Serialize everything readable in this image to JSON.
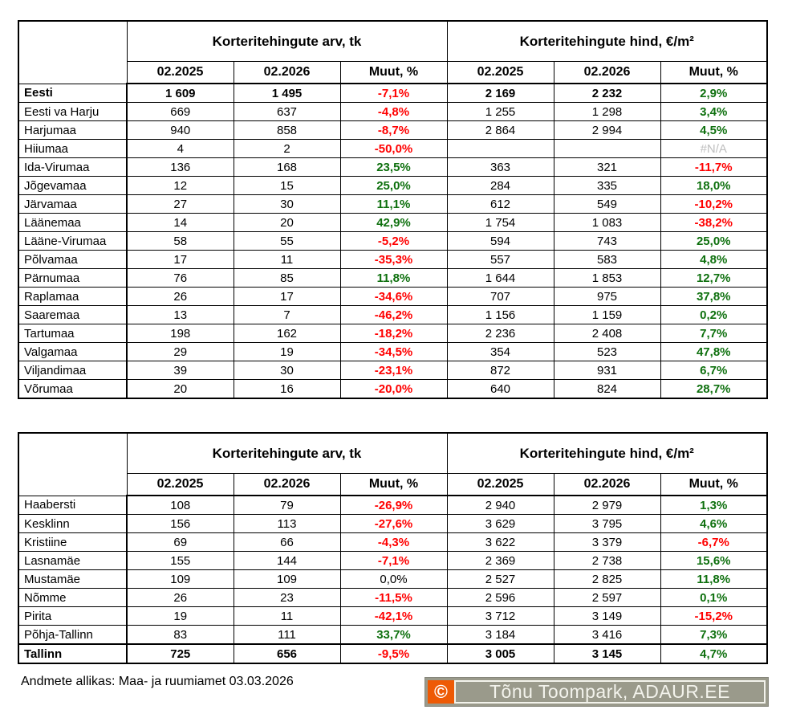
{
  "palette": {
    "negative": "#ff0000",
    "positive": "#0e700e",
    "neutral": "#000000",
    "na": "#bfbfbf",
    "border": "#000000",
    "watermark_bg": "#9a9a8b",
    "watermark_orange": "#ee5a05",
    "watermark_text": "#f3f3ec"
  },
  "chart_data": [
    {
      "type": "table",
      "name": "counties",
      "section_titles": [
        "Korteritehingute arv, tk",
        "Korteritehingute hind, €/m²"
      ],
      "period_headers": [
        "02.2025",
        "02.2026",
        "Muut, %"
      ],
      "rows": [
        {
          "label": "Eesti",
          "bold": true,
          "values": [
            "1 609",
            "1 495",
            "-7,1%",
            "2 169",
            "2 232",
            "2,9%"
          ],
          "tones": [
            null,
            null,
            "negative",
            null,
            null,
            "positive"
          ]
        },
        {
          "label": "Eesti va Harju",
          "values": [
            "669",
            "637",
            "-4,8%",
            "1 255",
            "1 298",
            "3,4%"
          ],
          "tones": [
            null,
            null,
            "negative",
            null,
            null,
            "positive"
          ]
        },
        {
          "label": "Harjumaa",
          "values": [
            "940",
            "858",
            "-8,7%",
            "2 864",
            "2 994",
            "4,5%"
          ],
          "tones": [
            null,
            null,
            "negative",
            null,
            null,
            "positive"
          ]
        },
        {
          "label": "Hiiumaa",
          "values": [
            "4",
            "2",
            "-50,0%",
            "",
            "",
            "#N/A"
          ],
          "tones": [
            null,
            null,
            "negative",
            null,
            null,
            "na"
          ]
        },
        {
          "label": "Ida-Virumaa",
          "values": [
            "136",
            "168",
            "23,5%",
            "363",
            "321",
            "-11,7%"
          ],
          "tones": [
            null,
            null,
            "positive",
            null,
            null,
            "negative"
          ]
        },
        {
          "label": "Jõgevamaa",
          "values": [
            "12",
            "15",
            "25,0%",
            "284",
            "335",
            "18,0%"
          ],
          "tones": [
            null,
            null,
            "positive",
            null,
            null,
            "positive"
          ]
        },
        {
          "label": "Järvamaa",
          "values": [
            "27",
            "30",
            "11,1%",
            "612",
            "549",
            "-10,2%"
          ],
          "tones": [
            null,
            null,
            "positive",
            null,
            null,
            "negative"
          ]
        },
        {
          "label": "Läänemaa",
          "values": [
            "14",
            "20",
            "42,9%",
            "1 754",
            "1 083",
            "-38,2%"
          ],
          "tones": [
            null,
            null,
            "positive",
            null,
            null,
            "negative"
          ]
        },
        {
          "label": "Lääne-Virumaa",
          "values": [
            "58",
            "55",
            "-5,2%",
            "594",
            "743",
            "25,0%"
          ],
          "tones": [
            null,
            null,
            "negative",
            null,
            null,
            "positive"
          ]
        },
        {
          "label": "Põlvamaa",
          "values": [
            "17",
            "11",
            "-35,3%",
            "557",
            "583",
            "4,8%"
          ],
          "tones": [
            null,
            null,
            "negative",
            null,
            null,
            "positive"
          ]
        },
        {
          "label": "Pärnumaa",
          "values": [
            "76",
            "85",
            "11,8%",
            "1 644",
            "1 853",
            "12,7%"
          ],
          "tones": [
            null,
            null,
            "positive",
            null,
            null,
            "positive"
          ]
        },
        {
          "label": "Raplamaa",
          "values": [
            "26",
            "17",
            "-34,6%",
            "707",
            "975",
            "37,8%"
          ],
          "tones": [
            null,
            null,
            "negative",
            null,
            null,
            "positive"
          ]
        },
        {
          "label": "Saaremaa",
          "values": [
            "13",
            "7",
            "-46,2%",
            "1 156",
            "1 159",
            "0,2%"
          ],
          "tones": [
            null,
            null,
            "negative",
            null,
            null,
            "positive"
          ]
        },
        {
          "label": "Tartumaa",
          "values": [
            "198",
            "162",
            "-18,2%",
            "2 236",
            "2 408",
            "7,7%"
          ],
          "tones": [
            null,
            null,
            "negative",
            null,
            null,
            "positive"
          ]
        },
        {
          "label": "Valgamaa",
          "values": [
            "29",
            "19",
            "-34,5%",
            "354",
            "523",
            "47,8%"
          ],
          "tones": [
            null,
            null,
            "negative",
            null,
            null,
            "positive"
          ]
        },
        {
          "label": "Viljandimaa",
          "values": [
            "39",
            "30",
            "-23,1%",
            "872",
            "931",
            "6,7%"
          ],
          "tones": [
            null,
            null,
            "negative",
            null,
            null,
            "positive"
          ]
        },
        {
          "label": "Võrumaa",
          "values": [
            "20",
            "16",
            "-20,0%",
            "640",
            "824",
            "28,7%"
          ],
          "tones": [
            null,
            null,
            "negative",
            null,
            null,
            "positive"
          ]
        }
      ]
    },
    {
      "type": "table",
      "name": "tallinn-districts",
      "section_titles": [
        "Korteritehingute arv, tk",
        "Korteritehingute hind, €/m²"
      ],
      "period_headers": [
        "02.2025",
        "02.2026",
        "Muut, %"
      ],
      "rows": [
        {
          "label": "Haabersti",
          "values": [
            "108",
            "79",
            "-26,9%",
            "2 940",
            "2 979",
            "1,3%"
          ],
          "tones": [
            null,
            null,
            "negative",
            null,
            null,
            "positive"
          ]
        },
        {
          "label": "Kesklinn",
          "values": [
            "156",
            "113",
            "-27,6%",
            "3 629",
            "3 795",
            "4,6%"
          ],
          "tones": [
            null,
            null,
            "negative",
            null,
            null,
            "positive"
          ]
        },
        {
          "label": "Kristiine",
          "values": [
            "69",
            "66",
            "-4,3%",
            "3 622",
            "3 379",
            "-6,7%"
          ],
          "tones": [
            null,
            null,
            "negative",
            null,
            null,
            "negative"
          ]
        },
        {
          "label": "Lasnamäe",
          "values": [
            "155",
            "144",
            "-7,1%",
            "2 369",
            "2 738",
            "15,6%"
          ],
          "tones": [
            null,
            null,
            "negative",
            null,
            null,
            "positive"
          ]
        },
        {
          "label": "Mustamäe",
          "values": [
            "109",
            "109",
            "0,0%",
            "2 527",
            "2 825",
            "11,8%"
          ],
          "tones": [
            null,
            null,
            "neutral",
            null,
            null,
            "positive"
          ]
        },
        {
          "label": "Nõmme",
          "values": [
            "26",
            "23",
            "-11,5%",
            "2 596",
            "2 597",
            "0,1%"
          ],
          "tones": [
            null,
            null,
            "negative",
            null,
            null,
            "positive"
          ]
        },
        {
          "label": "Pirita",
          "values": [
            "19",
            "11",
            "-42,1%",
            "3 712",
            "3 149",
            "-15,2%"
          ],
          "tones": [
            null,
            null,
            "negative",
            null,
            null,
            "negative"
          ]
        },
        {
          "label": "Põhja-Tallinn",
          "values": [
            "83",
            "111",
            "33,7%",
            "3 184",
            "3 416",
            "7,3%"
          ],
          "tones": [
            null,
            null,
            "positive",
            null,
            null,
            "positive"
          ]
        },
        {
          "label": "Tallinn",
          "bold": true,
          "total": true,
          "values": [
            "725",
            "656",
            "-9,5%",
            "3 005",
            "3 145",
            "4,7%"
          ],
          "tones": [
            null,
            null,
            "negative",
            null,
            null,
            "positive"
          ]
        }
      ]
    }
  ],
  "footer": {
    "source_note": "Andmete allikas: Maa- ja ruumiamet 03.03.2026"
  },
  "watermark": {
    "symbol": "©",
    "text": "Tõnu Toompark, ADAUR.EE"
  }
}
